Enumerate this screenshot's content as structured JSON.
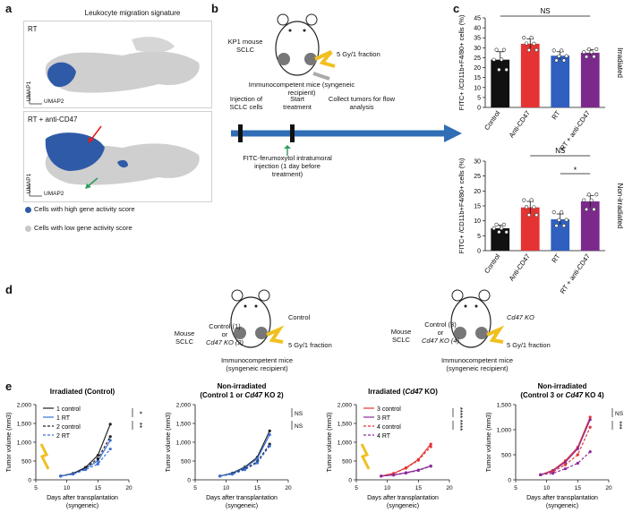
{
  "panels": {
    "a": {
      "label": "a",
      "title": "Leukocyte migration signature",
      "top_label": "RT",
      "bottom_label": "RT + anti-CD47",
      "umap1": "UMAP1",
      "umap2": "UMAP2",
      "legend_high": "Cells with high gene activity score",
      "legend_low": "Cells with low gene activity score",
      "high_color": "#2f5aa8",
      "low_color": "#c8c8c8"
    },
    "b": {
      "label": "b",
      "model": "KP1 mouse SCLC",
      "dose": "5 Gy/1 fraction",
      "recipient": "Immunocompetent mice (syngeneic recipient)",
      "injection": "Injection of SCLC cells",
      "start": "Start treatment",
      "collect": "Collect tumors for flow analysis",
      "fitc": "FITC-ferumoxytol intratumoral injection (1 day before treatment)"
    },
    "c": {
      "label": "c",
      "ylabel": "FITC+ /CD11b+F4/80+ cells (%)",
      "side_top": "Irradiated",
      "side_bottom": "Non-irradiated",
      "ns": "NS",
      "star": "*"
    },
    "d": {
      "label": "d",
      "left_model": "Mouse SCLC",
      "left_groups": "Control (1) or Cd47 KO (2)",
      "left_group_1": "Control (1)",
      "left_or": "or",
      "left_group_2": "Cd47 KO (2)",
      "left_condition": "Control",
      "right_model": "Mouse SCLC",
      "right_groups": "Control (3) or Cd47 KO (4)",
      "right_group_1": "Control (3)",
      "right_or": "or",
      "right_group_2": "Cd47 KO (4)",
      "right_condition": "Cd47 KO",
      "dose": "5 Gy/1 fraction",
      "recipient": "Immunocompetent mice (syngeneic recipient)"
    },
    "e": {
      "label": "e"
    }
  },
  "chart_data": [
    {
      "type": "bar",
      "panel": "c-top",
      "categories": [
        "Control",
        "Anti-CD47",
        "RT",
        "RT + anti-CD47"
      ],
      "values": [
        24,
        32,
        26,
        27.5
      ],
      "errors": [
        4,
        2.5,
        2,
        1.5
      ],
      "colors": [
        "#111111",
        "#e53333",
        "#2f5fbf",
        "#7b2a8c"
      ],
      "ylim": [
        0,
        45
      ],
      "yticks": [
        0,
        5,
        10,
        15,
        20,
        25,
        30,
        35,
        40,
        45
      ],
      "ylabel": "FITC+ /CD11b+F4/80+ cells (%)",
      "annotation": "NS"
    },
    {
      "type": "bar",
      "panel": "c-bottom",
      "categories": [
        "Control",
        "Anti-CD47",
        "RT",
        "RT + anti-CD47"
      ],
      "values": [
        7.5,
        14.5,
        10.5,
        16.5
      ],
      "errors": [
        1,
        2,
        1.8,
        2
      ],
      "colors": [
        "#111111",
        "#e53333",
        "#2f5fbf",
        "#7b2a8c"
      ],
      "ylim": [
        0,
        30
      ],
      "yticks": [
        0,
        5,
        10,
        15,
        20,
        25,
        30
      ],
      "ylabel": "FITC+ /CD11b+F4/80+ cells (%)",
      "annotations": [
        "NS",
        "*"
      ]
    },
    {
      "type": "line",
      "panel": "e1",
      "title": "Irradiated (Control)",
      "xlabel": "Days after transplantation (syngeneic)",
      "ylabel": "Tumor volume (mm3)",
      "xlim": [
        5,
        20
      ],
      "ylim": [
        0,
        2000
      ],
      "xticks": [
        5,
        10,
        15,
        20
      ],
      "yticks": [
        0,
        500,
        1000,
        1500,
        2000
      ],
      "x": [
        9,
        11,
        13,
        15,
        17
      ],
      "series": [
        {
          "name": "1 control",
          "values": [
            100,
            170,
            330,
            650,
            1480
          ],
          "color": "#222222",
          "dash": false,
          "marker": "square"
        },
        {
          "name": "1 RT",
          "values": [
            100,
            160,
            300,
            500,
            1050
          ],
          "color": "#3a6fd8",
          "dash": false,
          "marker": "triangle"
        },
        {
          "name": "2 control",
          "values": [
            100,
            165,
            320,
            560,
            1150
          ],
          "color": "#222222",
          "dash": true,
          "marker": "triangle-down"
        },
        {
          "name": "2 RT",
          "values": [
            100,
            150,
            270,
            420,
            820
          ],
          "color": "#3a6fd8",
          "dash": true,
          "marker": "x"
        }
      ],
      "annotations": [
        "*",
        "**"
      ]
    },
    {
      "type": "line",
      "panel": "e2",
      "title": "Non-irradiated (Control 1 or Cd47 KO 2)",
      "xlabel": "Days after transplantation (syngeneic)",
      "ylabel": "Tumor volume (mm3)",
      "xlim": [
        5,
        20
      ],
      "ylim": [
        0,
        2000
      ],
      "xticks": [
        5,
        10,
        15,
        20
      ],
      "yticks": [
        0,
        500,
        1000,
        1500,
        2000
      ],
      "x": [
        9,
        11,
        13,
        15,
        17
      ],
      "series": [
        {
          "name": "1 control",
          "values": [
            100,
            180,
            340,
            600,
            1300
          ],
          "color": "#222222",
          "dash": false,
          "marker": "square"
        },
        {
          "name": "1 RT",
          "values": [
            100,
            170,
            320,
            560,
            1200
          ],
          "color": "#3a6fd8",
          "dash": false,
          "marker": "triangle"
        },
        {
          "name": "2 control",
          "values": [
            100,
            160,
            290,
            480,
            950
          ],
          "color": "#222222",
          "dash": true,
          "marker": "triangle-down"
        },
        {
          "name": "2 RT",
          "values": [
            100,
            150,
            270,
            450,
            900
          ],
          "color": "#3a6fd8",
          "dash": true,
          "marker": "x"
        }
      ],
      "annotations": [
        "NS",
        "NS"
      ]
    },
    {
      "type": "line",
      "panel": "e3",
      "title": "Irradiated (Cd47 KO)",
      "xlabel": "Days after transplantation (syngeneic)",
      "ylabel": "Tumor volume (mm3)",
      "xlim": [
        5,
        20
      ],
      "ylim": [
        0,
        2000
      ],
      "xticks": [
        5,
        10,
        15,
        20
      ],
      "yticks": [
        0,
        500,
        1000,
        1500,
        2000
      ],
      "x": [
        9,
        11,
        13,
        15,
        17
      ],
      "series": [
        {
          "name": "3 control",
          "values": [
            100,
            170,
            320,
            540,
            950
          ],
          "color": "#e53333",
          "dash": false,
          "marker": "circle"
        },
        {
          "name": "3 RT",
          "values": [
            100,
            130,
            190,
            260,
            370
          ],
          "color": "#8a2a9c",
          "dash": false,
          "marker": "square"
        },
        {
          "name": "4 control",
          "values": [
            100,
            165,
            310,
            520,
            880
          ],
          "color": "#e53333",
          "dash": true,
          "marker": "triangle"
        },
        {
          "name": "4 RT",
          "values": [
            100,
            125,
            180,
            250,
            360
          ],
          "color": "#8a2a9c",
          "dash": true,
          "marker": "triangle-down"
        }
      ],
      "annotations": [
        "****",
        "****"
      ]
    },
    {
      "type": "line",
      "panel": "e4",
      "title": "Non-irradiated (Control 3 or Cd47 KO 4)",
      "xlabel": "Days after transplantation (syngeneic)",
      "ylabel": "Tumor volume (mm3)",
      "xlim": [
        5,
        20
      ],
      "ylim": [
        0,
        1500
      ],
      "xticks": [
        5,
        10,
        15,
        20
      ],
      "yticks": [
        0,
        500,
        1000,
        1500
      ],
      "x": [
        9,
        11,
        13,
        15,
        17
      ],
      "series": [
        {
          "name": "3 control",
          "values": [
            100,
            190,
            380,
            650,
            1250
          ],
          "color": "#e53333",
          "dash": false,
          "marker": "circle"
        },
        {
          "name": "3 RT",
          "values": [
            100,
            180,
            350,
            620,
            1200
          ],
          "color": "#8a2a9c",
          "dash": false,
          "marker": "square"
        },
        {
          "name": "4 control",
          "values": [
            100,
            160,
            300,
            500,
            1050
          ],
          "color": "#e53333",
          "dash": true,
          "marker": "triangle"
        },
        {
          "name": "4 RT",
          "values": [
            100,
            130,
            220,
            330,
            560
          ],
          "color": "#8a2a9c",
          "dash": true,
          "marker": "triangle-down"
        }
      ],
      "annotations": [
        "NS",
        "***"
      ]
    }
  ]
}
